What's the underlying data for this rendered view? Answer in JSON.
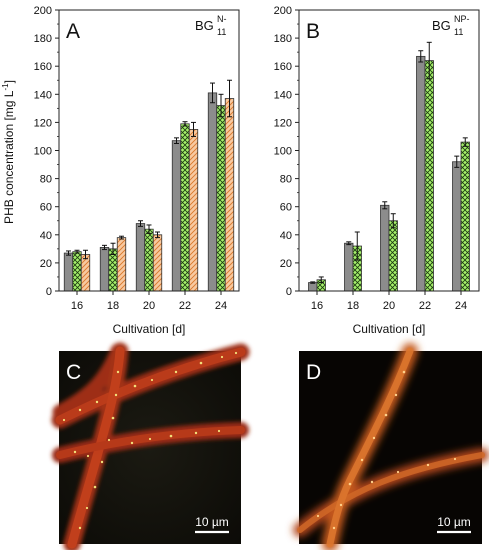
{
  "chart_data": [
    {
      "type": "bar",
      "panel_label": "A",
      "medium": "BG",
      "medium_sup": "N-",
      "medium_sub": "11",
      "categories": [
        "16",
        "18",
        "20",
        "22",
        "24"
      ],
      "series": [
        {
          "values": [
            27,
            31,
            48,
            107,
            141
          ],
          "errors": [
            1.5,
            1.5,
            2,
            2,
            7
          ],
          "color": "#8c8c8c",
          "pattern": "solid"
        },
        {
          "values": [
            28,
            30,
            44,
            119,
            132
          ],
          "errors": [
            1,
            4,
            3,
            1.5,
            8
          ],
          "color": "#a6f06a",
          "pattern": "crosshatch"
        },
        {
          "values": [
            26,
            38,
            40,
            115,
            137
          ],
          "errors": [
            3,
            1,
            2,
            5,
            13
          ],
          "color": "#f7c9a0",
          "pattern": "diagonal"
        }
      ],
      "xlabel": "Cultivation [d]",
      "ylabel": "PHB concentration [mg  L",
      "ylabel_sup": "-1",
      "ylabel_end": "]",
      "ylim": [
        0,
        200
      ],
      "yticks": [
        "0",
        "20",
        "40",
        "60",
        "80",
        "100",
        "120",
        "140",
        "160",
        "180",
        "200"
      ]
    },
    {
      "type": "bar",
      "panel_label": "B",
      "medium": "BG",
      "medium_sup": "NP-",
      "medium_sub": "11",
      "categories": [
        "16",
        "18",
        "20",
        "22",
        "24"
      ],
      "series": [
        {
          "values": [
            6,
            34,
            61,
            167,
            92
          ],
          "errors": [
            0.5,
            1,
            2.5,
            4,
            4
          ],
          "color": "#8c8c8c",
          "pattern": "solid"
        },
        {
          "values": [
            8,
            32,
            50,
            164,
            106
          ],
          "errors": [
            2,
            10,
            5,
            13,
            3
          ],
          "color": "#a6f06a",
          "pattern": "crosshatch"
        }
      ],
      "xlabel": "Cultivation [d]",
      "ylim": [
        0,
        200
      ],
      "yticks": [
        "0",
        "20",
        "40",
        "60",
        "80",
        "100",
        "120",
        "140",
        "160",
        "180",
        "200"
      ]
    }
  ],
  "micrographs": [
    {
      "panel_label": "C",
      "scale_bar": "10 µm"
    },
    {
      "panel_label": "D",
      "scale_bar": "10 µm"
    }
  ]
}
